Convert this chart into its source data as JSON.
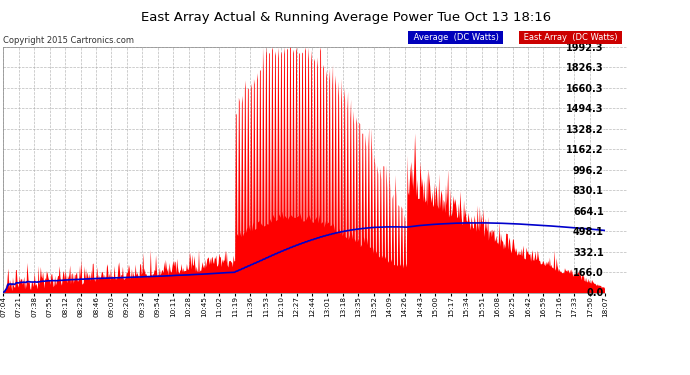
{
  "title": "East Array Actual & Running Average Power Tue Oct 13 18:16",
  "copyright": "Copyright 2015 Cartronics.com",
  "ylabel_ticks": [
    0.0,
    166.0,
    332.1,
    498.1,
    664.1,
    830.1,
    996.2,
    1162.2,
    1328.2,
    1494.3,
    1660.3,
    1826.3,
    1992.3
  ],
  "xlabels": [
    "07:04",
    "07:21",
    "07:38",
    "07:55",
    "08:12",
    "08:29",
    "08:46",
    "09:03",
    "09:20",
    "09:37",
    "09:54",
    "10:11",
    "10:28",
    "10:45",
    "11:02",
    "11:19",
    "11:36",
    "11:53",
    "12:10",
    "12:27",
    "12:44",
    "13:01",
    "13:18",
    "13:35",
    "13:52",
    "14:09",
    "14:26",
    "14:43",
    "15:00",
    "15:17",
    "15:34",
    "15:51",
    "16:08",
    "16:25",
    "16:42",
    "16:59",
    "17:16",
    "17:33",
    "17:50",
    "18:07"
  ],
  "bg_color": "#ffffff",
  "plot_bg": "#ffffff",
  "grid_color": "#aaaaaa",
  "title_color": "#000000",
  "tick_color": "#000000",
  "east_array_color": "#ff0000",
  "average_color": "#0000cc",
  "ymax": 1992.3,
  "ymin": 0.0,
  "n_points": 800
}
